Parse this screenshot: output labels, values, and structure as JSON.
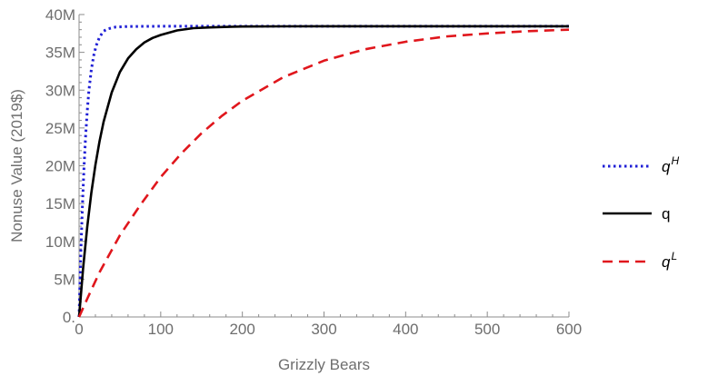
{
  "chart_data": {
    "type": "line",
    "title": "",
    "xlabel": "Grizzly Bears",
    "ylabel": "Nonuse Value (2019$)",
    "xlim": [
      0,
      600
    ],
    "ylim": [
      0,
      40000000
    ],
    "x_ticks": [
      0,
      100,
      200,
      300,
      400,
      500,
      600
    ],
    "x_tick_labels": [
      "0",
      "100",
      "200",
      "300",
      "400",
      "500",
      "600"
    ],
    "y_ticks": [
      0,
      5000000,
      10000000,
      15000000,
      20000000,
      25000000,
      30000000,
      35000000,
      40000000
    ],
    "y_tick_labels": [
      "0.",
      "5M",
      "10M",
      "15M",
      "20M",
      "25M",
      "30M",
      "35M",
      "40M"
    ],
    "grid": false,
    "legend_position": "right",
    "series": [
      {
        "name": "q",
        "name_base": "q",
        "name_sup": "H",
        "color": "#1f1fd6",
        "style": "dotted",
        "x": [
          0,
          2,
          4,
          6,
          8,
          10,
          12,
          15,
          18,
          21,
          25,
          30,
          35,
          45,
          60,
          100,
          200,
          300,
          400,
          500,
          600
        ],
        "values": [
          0,
          8040000,
          14400000,
          19700000,
          23900000,
          27200000,
          29900000,
          32700000,
          34600000,
          35900000,
          37000000,
          37800000,
          38100000,
          38350000,
          38420000,
          38450000,
          38450000,
          38450000,
          38450000,
          38450000,
          38450000
        ]
      },
      {
        "name": "q",
        "name_base": "q",
        "name_sup": "",
        "color": "#000000",
        "style": "solid",
        "x": [
          0,
          5,
          10,
          15,
          20,
          25,
          30,
          40,
          50,
          60,
          70,
          80,
          90,
          100,
          120,
          140,
          160,
          200,
          250,
          300,
          400,
          500,
          600
        ],
        "values": [
          0,
          6500000,
          11900000,
          16400000,
          20100000,
          23200000,
          25800000,
          29700000,
          32400000,
          34200000,
          35400000,
          36300000,
          36900000,
          37300000,
          37900000,
          38200000,
          38300000,
          38420000,
          38440000,
          38450000,
          38450000,
          38450000,
          38450000
        ]
      },
      {
        "name": "q",
        "name_base": "q",
        "name_sup": "L",
        "color": "#e0161c",
        "style": "dashed",
        "x": [
          0,
          10,
          25,
          50,
          75,
          100,
          125,
          150,
          175,
          200,
          250,
          300,
          350,
          400,
          450,
          500,
          550,
          600
        ],
        "values": [
          0,
          2400000,
          5900000,
          10800000,
          14800000,
          18500000,
          21600000,
          24300000,
          26600000,
          28600000,
          31700000,
          33900000,
          35400000,
          36400000,
          37100000,
          37500000,
          37800000,
          38000000
        ]
      }
    ]
  }
}
